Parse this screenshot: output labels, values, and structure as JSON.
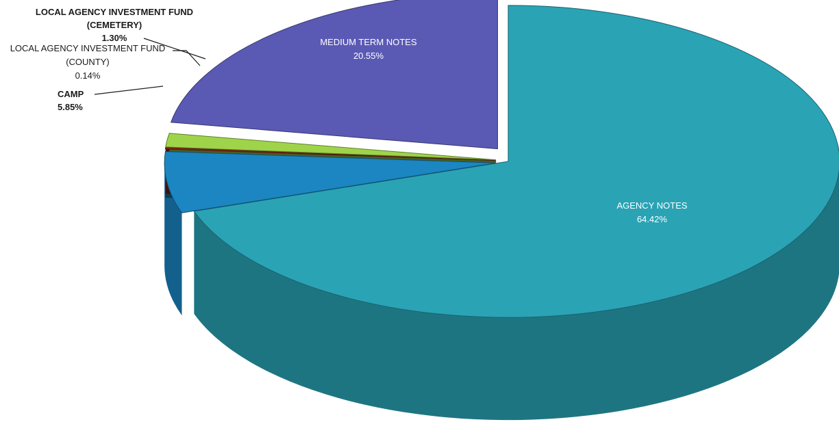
{
  "chart_data": {
    "type": "pie",
    "style": "3d-exploded",
    "title": "",
    "slices": [
      {
        "name": "AGENCY NOTES",
        "value": 64.42,
        "value_label": "64.42%",
        "color": "#2aa3b5"
      },
      {
        "name": "CAMP",
        "value": 5.85,
        "value_label": "5.85%",
        "color": "#1b86c2"
      },
      {
        "name": "LOCAL AGENCY INVESTMENT FUND (COUNTY)",
        "line1": "LOCAL AGENCY INVESTMENT FUND",
        "line2": "(COUNTY)",
        "value": 0.14,
        "value_label": "0.14%",
        "color": "#8b2a1a"
      },
      {
        "name": "LOCAL AGENCY INVESTMENT FUND (CEMETERY)",
        "line1": "LOCAL AGENCY INVESTMENT FUND",
        "line2": "(CEMETERY)",
        "value": 1.3,
        "value_label": "1.30%",
        "color": "#9fd44a"
      },
      {
        "name": "MEDIUM TERM NOTES",
        "value": 20.55,
        "value_label": "20.55%",
        "color": "#5a5ab5"
      }
    ]
  }
}
